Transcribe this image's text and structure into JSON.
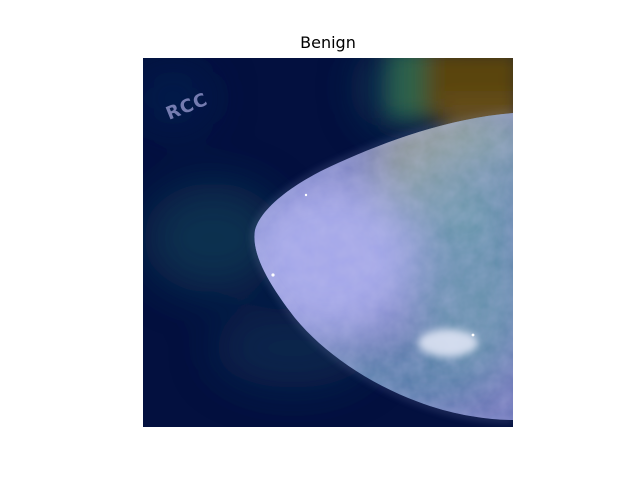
{
  "figure": {
    "title": "Benign",
    "view_label": "RCC",
    "image": {
      "kind": "mammogram-heatmap-overlay",
      "colormap": "viridis",
      "colors": {
        "background": "#03103f",
        "hot_region": "#5a4410",
        "tissue": "#a7a9e6",
        "warm_tissue": "#c4bf84",
        "teal": "#3a8f8b"
      }
    }
  }
}
